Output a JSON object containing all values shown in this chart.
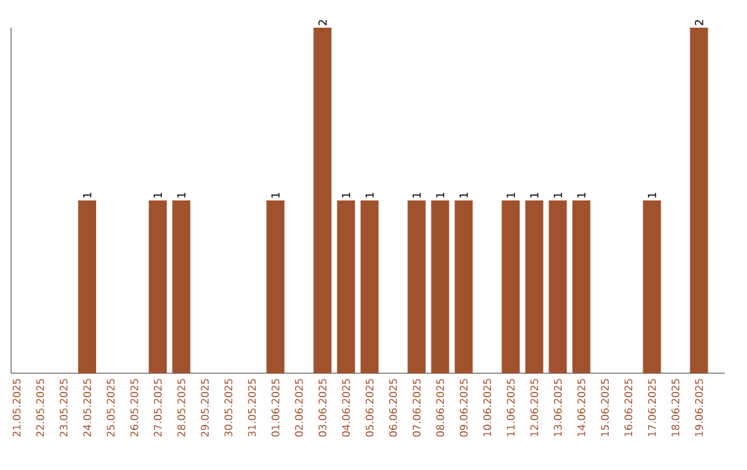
{
  "chart_data": {
    "type": "bar",
    "categories": [
      "21.05.2025",
      "22.05.2025",
      "23.05.2025",
      "24.05.2025",
      "25.05.2025",
      "26.05.2025",
      "27.05.2025",
      "28.05.2025",
      "29.05.2025",
      "30.05.2025",
      "31.05.2025",
      "01.06.2025",
      "02.06.2025",
      "03.06.2025",
      "04.06.2025",
      "05.06.2025",
      "06.06.2025",
      "07.06.2025",
      "08.06.2025",
      "09.06.2025",
      "10.06.2025",
      "11.06.2025",
      "12.06.2025",
      "13.06.2025",
      "14.06.2025",
      "15.06.2025",
      "16.06.2025",
      "17.06.2025",
      "18.06.2025",
      "19.06.2025"
    ],
    "values": [
      0,
      0,
      0,
      1,
      0,
      0,
      1,
      1,
      0,
      0,
      0,
      1,
      0,
      2,
      1,
      1,
      0,
      1,
      1,
      1,
      0,
      1,
      1,
      1,
      1,
      0,
      0,
      1,
      0,
      2
    ],
    "value_labels": [
      null,
      null,
      null,
      "1",
      null,
      null,
      "1",
      "1",
      null,
      null,
      null,
      "1",
      null,
      "2",
      "1",
      "1",
      null,
      "1",
      "1",
      "1",
      null,
      "1",
      "1",
      "1",
      "1",
      null,
      null,
      "1",
      null,
      "2"
    ],
    "color": "#a0522d",
    "ylim": [
      0,
      2
    ]
  }
}
